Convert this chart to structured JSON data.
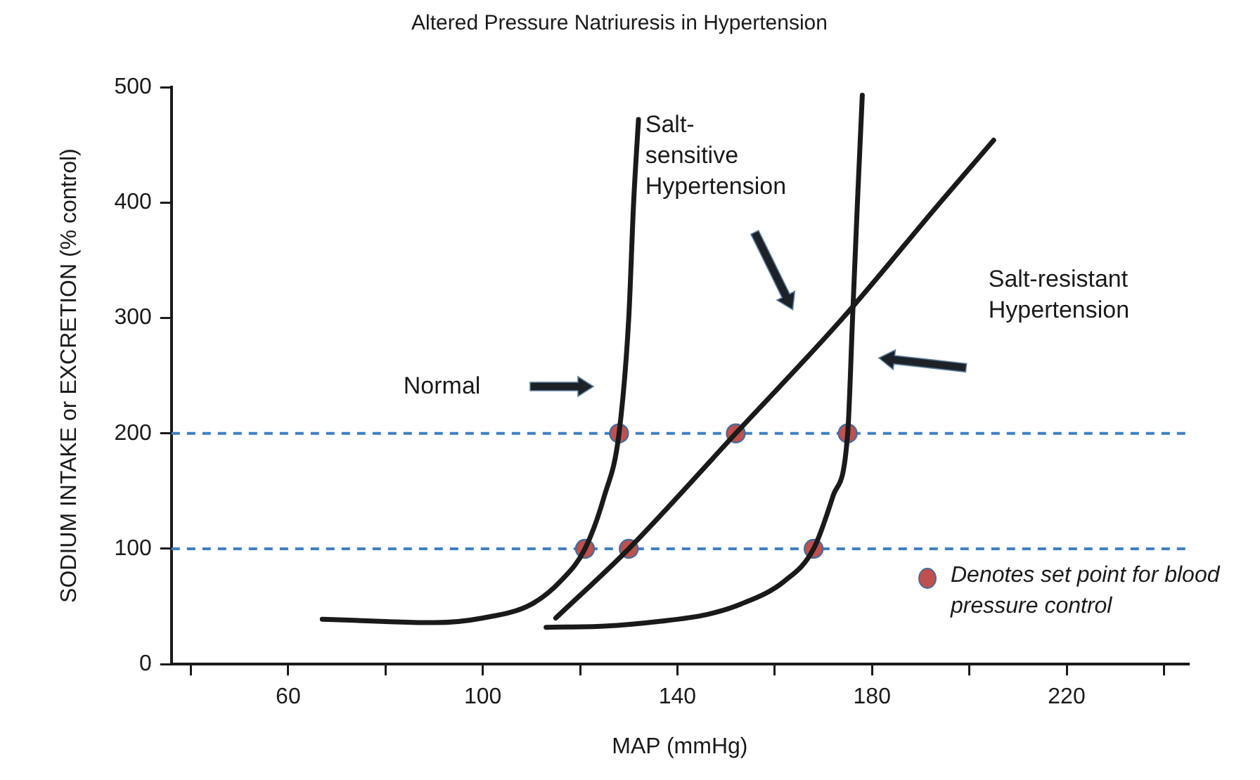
{
  "chart_data": {
    "type": "line",
    "title": "Altered Pressure Natriuresis in Hypertension",
    "xlabel": "MAP (mmHg)",
    "ylabel": "SODIUM INTAKE or EXCRETION (% control)",
    "xlim": [
      36,
      245
    ],
    "xticks": [
      {
        "value": 40,
        "label": null
      },
      60,
      {
        "value": 80,
        "label": null
      },
      100,
      {
        "value": 120,
        "label": null
      },
      140,
      {
        "value": 160,
        "label": null
      },
      180,
      {
        "value": 200,
        "label": null
      },
      220,
      {
        "value": 240,
        "label": null
      }
    ],
    "ylim": [
      0,
      500
    ],
    "yticks": [
      0,
      100,
      200,
      300,
      400,
      500
    ],
    "grid": false,
    "legend": "bottom right",
    "series": [
      {
        "type": "line",
        "color": "#1a1a1a",
        "x": [
          67,
          80,
          90,
          100,
          110,
          116,
          121,
          125,
          128,
          130,
          131,
          132
        ],
        "values": [
          39,
          37,
          36,
          40,
          52,
          72,
          100,
          146,
          200,
          300,
          400,
          472
        ]
      },
      {
        "type": "line",
        "color": "#1a1a1a",
        "x": [
          115,
          130,
          152,
          174,
          194,
          205
        ],
        "values": [
          40,
          100,
          200,
          300,
          400,
          454
        ]
      },
      {
        "type": "line",
        "color": "#1a1a1a",
        "x": [
          113,
          125,
          136,
          146,
          153,
          162,
          168,
          172,
          175,
          176,
          177,
          178
        ],
        "values": [
          32,
          33,
          37,
          43,
          52,
          72,
          100,
          146,
          200,
          300,
          400,
          493
        ]
      },
      {
        "type": "scatter",
        "name": "Denotes set point for blood pressure control",
        "color": "#c0504d",
        "x": [
          121,
          128,
          130,
          152,
          168,
          175
        ],
        "values": [
          100,
          200,
          100,
          200,
          100,
          200
        ]
      }
    ],
    "ref_lines": [
      {
        "axis": "y",
        "value": 100,
        "color": "#3f7fc4",
        "line_style": "dashed"
      },
      {
        "axis": "y",
        "value": 200,
        "color": "#3f7fc4",
        "line_style": "dashed"
      }
    ],
    "annotations": [
      "Normal",
      "Salt-sensitive Hypertension",
      "Salt-resistant Hypertension"
    ]
  }
}
